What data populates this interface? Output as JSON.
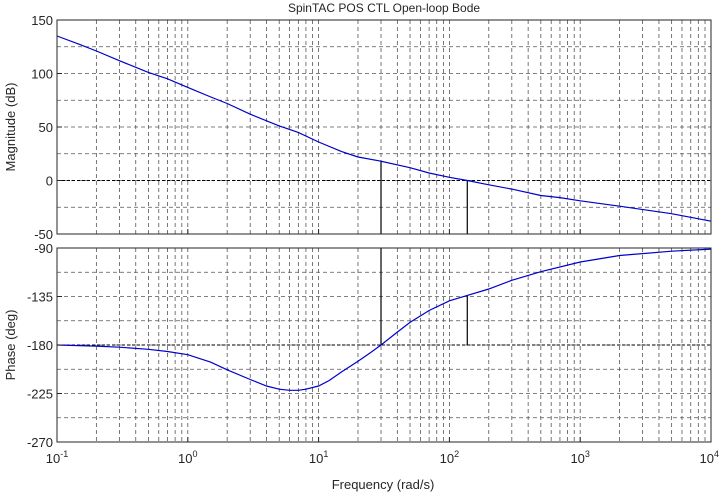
{
  "chart_data": {
    "type": "line",
    "title": "SpinTAC POS CTL Open-loop Bode",
    "xlabel": "Frequency  (rad/s)",
    "xscale": "log",
    "xlim": [
      0.1,
      10000
    ],
    "x_ticks": [
      {
        "base": "10",
        "exp": "-1"
      },
      {
        "base": "10",
        "exp": "0"
      },
      {
        "base": "10",
        "exp": "1"
      },
      {
        "base": "10",
        "exp": "2"
      },
      {
        "base": "10",
        "exp": "3"
      },
      {
        "base": "10",
        "exp": "4"
      }
    ],
    "colors": {
      "curve": "#0000cc",
      "grid": "#555555",
      "marker": "#000000"
    },
    "magnitude": {
      "ylabel": "Magnitude (dB)",
      "ylim": [
        -50,
        150
      ],
      "yticks": [
        "150",
        "100",
        "50",
        "0",
        "-50"
      ],
      "series": {
        "name": "Magnitude",
        "x": [
          0.1,
          0.15,
          0.2,
          0.3,
          0.5,
          0.7,
          1,
          1.5,
          2,
          3,
          5,
          7,
          10,
          15,
          20,
          30,
          50,
          70,
          100,
          137,
          200,
          300,
          500,
          700,
          1000,
          2000,
          5000,
          10000
        ],
        "y": [
          135,
          127,
          121,
          112,
          101,
          95,
          87,
          78,
          72,
          62,
          51,
          45,
          36,
          27,
          22,
          18,
          12,
          7,
          3,
          0,
          -4,
          -8,
          -14,
          -16,
          -19,
          -24,
          -31,
          -38
        ]
      },
      "markers": [
        {
          "name": "phase-crossover",
          "x": 30,
          "y_from": 18,
          "y_to": -50
        },
        {
          "name": "gain-crossover",
          "x": 137,
          "y_from": 0,
          "y_to": -50
        }
      ],
      "reference_line": 0
    },
    "phase": {
      "ylabel": "Phase (deg)",
      "ylim": [
        -270,
        -90
      ],
      "yticks": [
        "-90",
        "-135",
        "-180",
        "-225",
        "-270"
      ],
      "series": {
        "name": "Phase",
        "x": [
          0.1,
          0.2,
          0.3,
          0.5,
          0.7,
          1,
          1.5,
          2,
          3,
          4,
          5,
          6,
          7,
          8,
          10,
          12,
          15,
          20,
          25,
          30,
          40,
          50,
          70,
          100,
          137,
          200,
          300,
          500,
          1000,
          2000,
          5000,
          10000
        ],
        "y": [
          -180,
          -181,
          -182,
          -184,
          -186,
          -189,
          -196,
          -203,
          -212,
          -218,
          -221,
          -222,
          -222,
          -221,
          -218,
          -213,
          -205,
          -195,
          -187,
          -180,
          -168,
          -159,
          -148,
          -139,
          -134,
          -128,
          -120,
          -112,
          -103,
          -97,
          -93,
          -91
        ]
      },
      "markers": [
        {
          "name": "phase-crossover",
          "x": 30,
          "y_from": -90,
          "y_to": -180
        },
        {
          "name": "gain-crossover",
          "x": 137,
          "y_from": -134,
          "y_to": -180
        }
      ],
      "reference_line": -180
    }
  }
}
